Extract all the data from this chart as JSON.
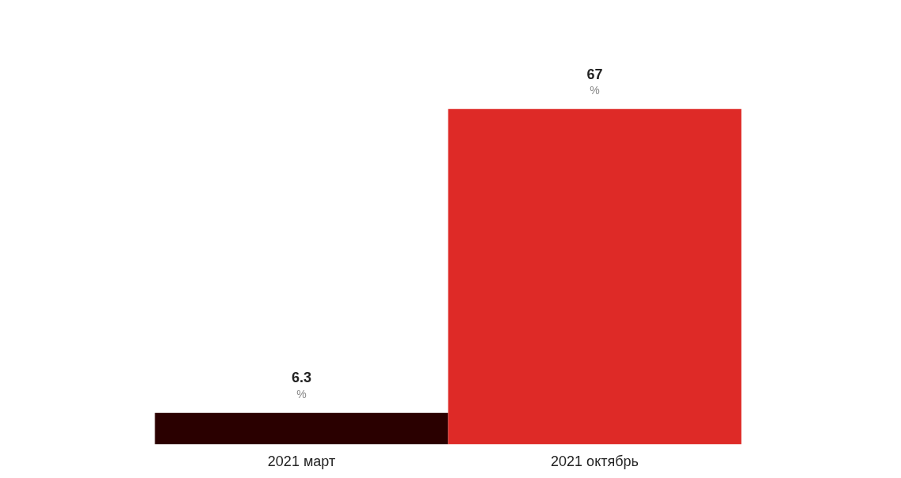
{
  "chart_data": {
    "type": "bar",
    "categories": [
      "2021 март",
      "2021 октябрь"
    ],
    "values": [
      6.3,
      67
    ],
    "colors": [
      "#2a0000",
      "#de2a27"
    ],
    "data_labels": true,
    "annotations": [
      {
        "text": "%",
        "x": "2021 март",
        "y": 6.3
      },
      {
        "text": "%",
        "x": "2021 октябрь",
        "y": 67
      }
    ],
    "tick_labels": "x",
    "grid": false
  }
}
